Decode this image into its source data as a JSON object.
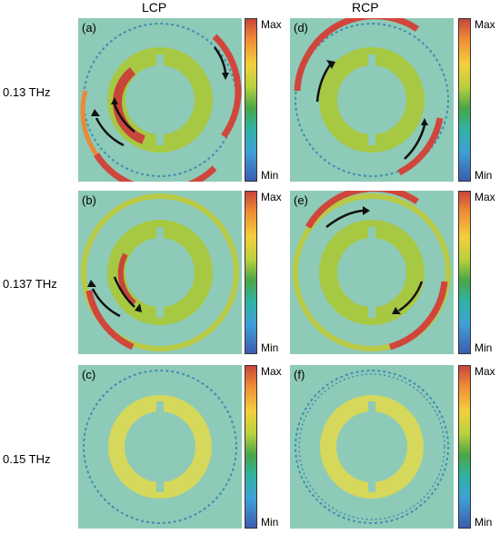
{
  "columns": {
    "left": "LCP",
    "right": "RCP"
  },
  "rows": [
    "0.13 THz",
    "0.137 THz",
    "0.15 THz"
  ],
  "panel_labels": [
    "(a)",
    "(b)",
    "(c)",
    "(d)",
    "(e)",
    "(f)"
  ],
  "colorbar": {
    "max": "Max",
    "min": "Min"
  },
  "colors": {
    "background_field": "#8ecab8",
    "high": "#c8453a",
    "mid": "#b8d13d",
    "low": "#3c5cb0"
  }
}
